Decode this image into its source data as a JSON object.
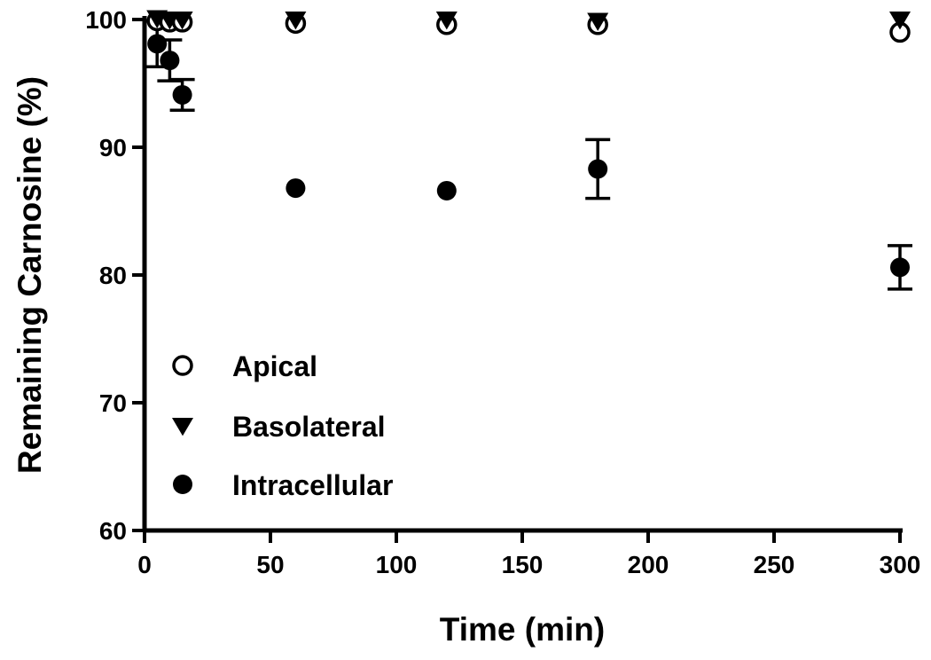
{
  "chart_data": {
    "type": "scatter",
    "xlabel": "Time (min)",
    "ylabel": "Remaining Carnosine (%)",
    "xlim": [
      0,
      300
    ],
    "ylim": [
      60,
      100
    ],
    "x_ticks": [
      0,
      50,
      100,
      150,
      200,
      250,
      300
    ],
    "y_ticks": [
      60,
      70,
      80,
      90,
      100
    ],
    "grid": false,
    "legend_position": "bottom-left",
    "series": [
      {
        "name": "Apical",
        "marker": "open-circle",
        "points": [
          {
            "x": 5,
            "y": 99.9,
            "err": 0.2
          },
          {
            "x": 10,
            "y": 99.8,
            "err": 0.2
          },
          {
            "x": 15,
            "y": 99.8,
            "err": 0.2
          },
          {
            "x": 60,
            "y": 99.7,
            "err": 0.3
          },
          {
            "x": 120,
            "y": 99.6,
            "err": 0.4
          },
          {
            "x": 180,
            "y": 99.6,
            "err": 0.4
          },
          {
            "x": 300,
            "y": 99.0,
            "err": 0.5
          }
        ]
      },
      {
        "name": "Basolateral",
        "marker": "filled-triangle-down",
        "points": [
          {
            "x": 5,
            "y": 100.1,
            "err": 0.2
          },
          {
            "x": 10,
            "y": 100.0,
            "err": 0.2
          },
          {
            "x": 15,
            "y": 100.0,
            "err": 0.2
          },
          {
            "x": 60,
            "y": 100.0,
            "err": 0.2
          },
          {
            "x": 120,
            "y": 100.0,
            "err": 0.2
          },
          {
            "x": 180,
            "y": 99.9,
            "err": 0.2
          },
          {
            "x": 300,
            "y": 100.0,
            "err": 0.2
          }
        ]
      },
      {
        "name": "Intracellular",
        "marker": "filled-circle",
        "points": [
          {
            "x": 5,
            "y": 98.1,
            "err": 1.8
          },
          {
            "x": 10,
            "y": 96.8,
            "err": 1.6
          },
          {
            "x": 15,
            "y": 94.1,
            "err": 1.2
          },
          {
            "x": 60,
            "y": 86.8,
            "err": 0
          },
          {
            "x": 120,
            "y": 86.6,
            "err": 0
          },
          {
            "x": 180,
            "y": 88.3,
            "err": 2.3
          },
          {
            "x": 300,
            "y": 80.6,
            "err": 1.7
          }
        ]
      }
    ]
  }
}
